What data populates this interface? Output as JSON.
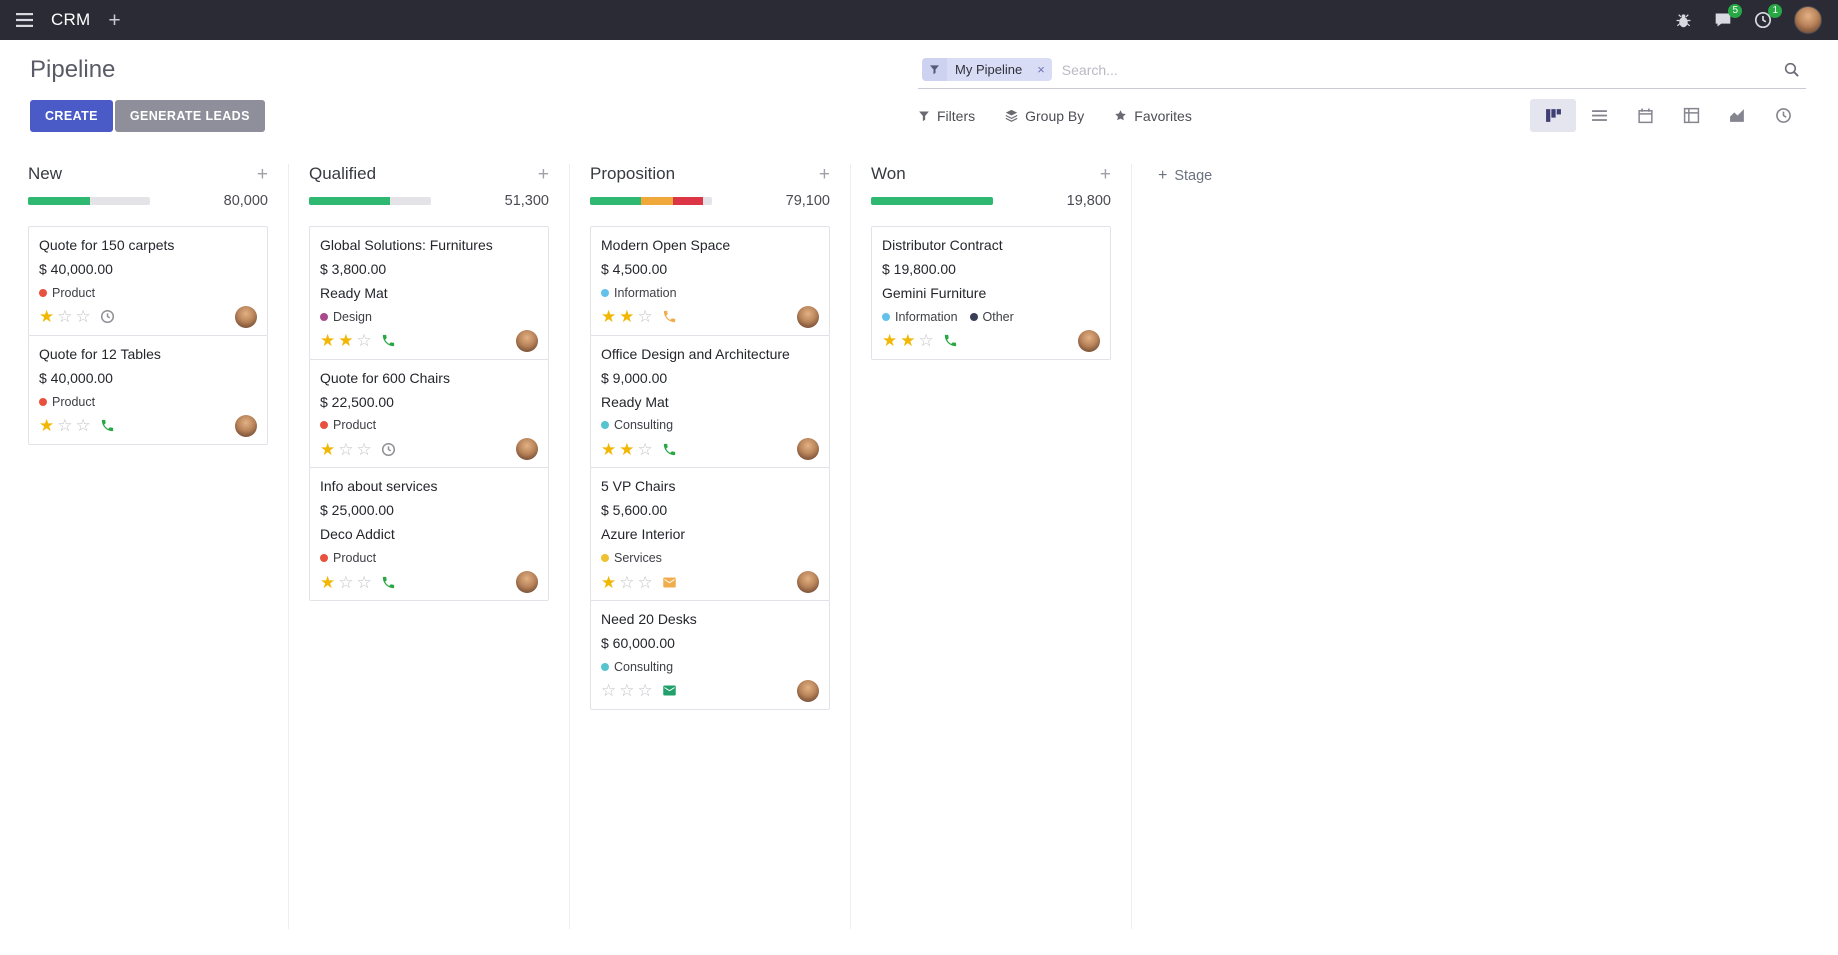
{
  "icons": {
    "plus": "+",
    "star_filled": "★",
    "star_empty": "☆",
    "remove": "×"
  },
  "topbar": {
    "app_name": "CRM",
    "messages_badge": "5",
    "activities_badge": "1"
  },
  "control_panel": {
    "title": "Pipeline",
    "create_button": "CREATE",
    "generate_leads_button": "GENERATE LEADS",
    "search": {
      "facet": "My Pipeline",
      "placeholder": "Search..."
    },
    "filters": "Filters",
    "group_by": "Group By",
    "favorites": "Favorites"
  },
  "colors": {
    "primary_button": "#4a5bc8",
    "secondary_button": "#8f8f9b",
    "badge_green": "#28a745",
    "progress_green": "#2eb872",
    "progress_yellow": "#efa839",
    "progress_red": "#dc3545",
    "star_filled": "#f2b705"
  },
  "kanban": {
    "add_stage_label": "Stage",
    "columns": [
      {
        "name": "New",
        "counter": "80,000",
        "progress": [
          {
            "color": "#2eb872",
            "pct": 51
          }
        ],
        "cards": [
          {
            "title": "Quote for 150 carpets",
            "amount": "$ 40,000.00",
            "tags": [
              {
                "label": "Product",
                "color": "#e8513d"
              }
            ],
            "stars": 1,
            "activities": [
              {
                "type": "clock",
                "color": "#8f9096"
              }
            ]
          },
          {
            "title": "Quote for 12 Tables",
            "amount": "$ 40,000.00",
            "tags": [
              {
                "label": "Product",
                "color": "#e8513d"
              }
            ],
            "stars": 1,
            "activities": [
              {
                "type": "phone",
                "color": "#28a745"
              }
            ]
          }
        ]
      },
      {
        "name": "Qualified",
        "counter": "51,300",
        "progress": [
          {
            "color": "#2eb872",
            "pct": 66
          }
        ],
        "cards": [
          {
            "title": "Global Solutions: Furnitures",
            "amount": "$ 3,800.00",
            "partner": "Ready Mat",
            "tags": [
              {
                "label": "Design",
                "color": "#a94a8c"
              }
            ],
            "stars": 2,
            "activities": [
              {
                "type": "phone",
                "color": "#28a745"
              }
            ]
          },
          {
            "title": "Quote for 600 Chairs",
            "amount": "$ 22,500.00",
            "tags": [
              {
                "label": "Product",
                "color": "#e8513d"
              }
            ],
            "stars": 1,
            "activities": [
              {
                "type": "clock",
                "color": "#8f9096"
              }
            ]
          },
          {
            "title": "Info about services",
            "amount": "$ 25,000.00",
            "partner": "Deco Addict",
            "tags": [
              {
                "label": "Product",
                "color": "#e8513d"
              }
            ],
            "stars": 1,
            "activities": [
              {
                "type": "phone",
                "color": "#28a745"
              }
            ]
          }
        ]
      },
      {
        "name": "Proposition",
        "counter": "79,100",
        "progress": [
          {
            "color": "#2eb872",
            "pct": 42
          },
          {
            "color": "#efa839",
            "pct": 26
          },
          {
            "color": "#dc3545",
            "pct": 25
          }
        ],
        "cards": [
          {
            "title": "Modern Open Space",
            "amount": "$ 4,500.00",
            "tags": [
              {
                "label": "Information",
                "color": "#64c2ea"
              }
            ],
            "stars": 2,
            "activities": [
              {
                "type": "phone",
                "color": "#f0ad4e"
              }
            ]
          },
          {
            "title": "Office Design and Architecture",
            "amount": "$ 9,000.00",
            "partner": "Ready Mat",
            "tags": [
              {
                "label": "Consulting",
                "color": "#55c4cf"
              }
            ],
            "stars": 2,
            "activities": [
              {
                "type": "phone",
                "color": "#28a745"
              }
            ]
          },
          {
            "title": "5 VP Chairs",
            "amount": "$ 5,600.00",
            "partner": "Azure Interior",
            "tags": [
              {
                "label": "Services",
                "color": "#edc12f"
              }
            ],
            "stars": 1,
            "activities": [
              {
                "type": "envelope",
                "color": "#f0ad4e"
              }
            ]
          },
          {
            "title": "Need 20 Desks",
            "amount": "$ 60,000.00",
            "tags": [
              {
                "label": "Consulting",
                "color": "#55c4cf"
              }
            ],
            "stars": 0,
            "activities": [
              {
                "type": "envelope",
                "color": "#22a06b"
              }
            ]
          }
        ]
      },
      {
        "name": "Won",
        "counter": "19,800",
        "progress": [
          {
            "color": "#2eb872",
            "pct": 100
          }
        ],
        "cards": [
          {
            "title": "Distributor Contract",
            "amount": "$ 19,800.00",
            "partner": "Gemini Furniture",
            "tags": [
              {
                "label": "Information",
                "color": "#64c2ea"
              },
              {
                "label": "Other",
                "color": "#3a3f58"
              }
            ],
            "stars": 2,
            "activities": [
              {
                "type": "phone",
                "color": "#28a745"
              }
            ]
          }
        ]
      }
    ]
  }
}
